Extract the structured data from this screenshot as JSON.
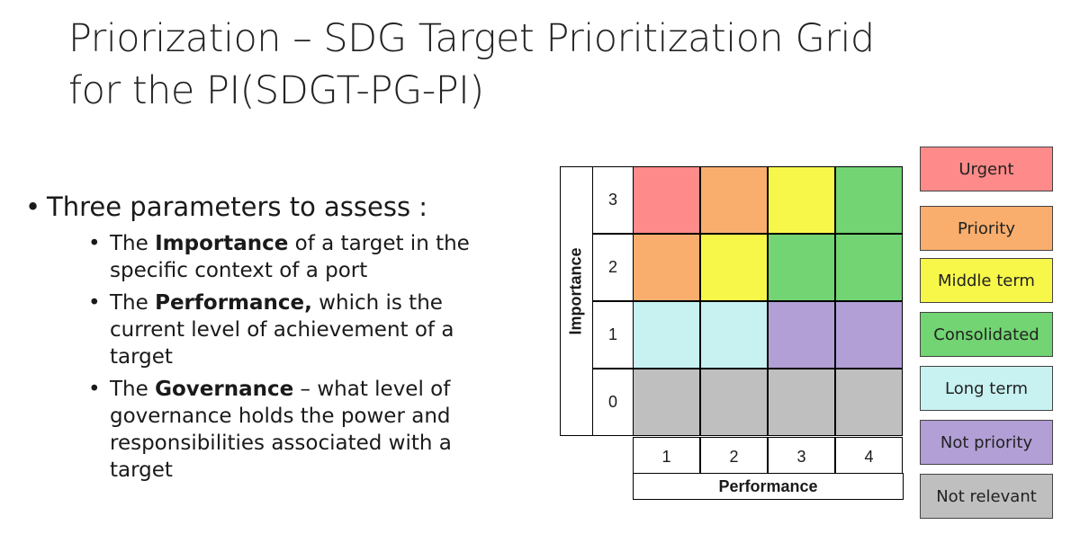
{
  "slide": {
    "title_line1": "Priorization – SDG Target Prioritization Grid",
    "title_line2": "for the PI(SDGT-PG-PI)",
    "bullet_main": "Three parameters to assess :",
    "sub_bullets": [
      {
        "pre": "The ",
        "bold": "Importance",
        "post": " of a target in the specific context of a port"
      },
      {
        "pre": "The ",
        "bold": "Performance,",
        "post": " which is the current level of achievement of a target"
      },
      {
        "pre": "The ",
        "bold": "Governance",
        "post": " – what level of governance holds the power and responsibilities associated with a target"
      }
    ]
  },
  "grid": {
    "y_axis_label": "Importance",
    "x_axis_label": "Performance",
    "row_labels": [
      "3",
      "2",
      "1",
      "0"
    ],
    "col_labels": [
      "1",
      "2",
      "3",
      "4"
    ],
    "cells": [
      [
        "Urgent",
        "Priority",
        "Middle term",
        "Consolidated"
      ],
      [
        "Priority",
        "Middle term",
        "Consolidated",
        "Consolidated"
      ],
      [
        "Long term",
        "Long term",
        "Not priority",
        "Not priority"
      ],
      [
        "Not relevant",
        "Not relevant",
        "Not relevant",
        "Not relevant"
      ]
    ]
  },
  "legend": [
    {
      "label": "Urgent",
      "color": "#ff8a8a"
    },
    {
      "label": "Priority",
      "color": "#f9ae6d"
    },
    {
      "label": "Middle term",
      "color": "#f7f74a"
    },
    {
      "label": "Consolidated",
      "color": "#72d472"
    },
    {
      "label": "Long term",
      "color": "#c8f1f1"
    },
    {
      "label": "Not priority",
      "color": "#b29fd6"
    },
    {
      "label": "Not relevant",
      "color": "#bfbfbf"
    }
  ]
}
